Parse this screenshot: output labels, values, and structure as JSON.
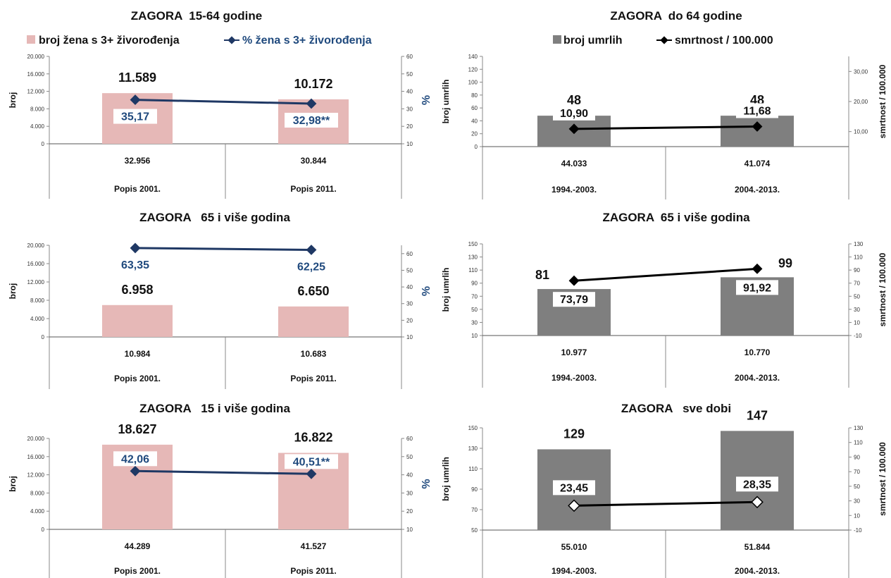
{
  "legends": {
    "left_bar": "broj žena s 3+ živorođenja",
    "left_line": "% žena s 3+ živorođenja",
    "right_bar": "broj umrlih",
    "right_line": "smrtnost / 100.000"
  },
  "colors": {
    "pink_bar": "#e6b8b7",
    "gray_bar": "#7f7f7f",
    "navy_line": "#1f3864",
    "pct_text": "#1f497d",
    "black_line": "#000000"
  },
  "chart_data": [
    {
      "id": "left1",
      "type": "bar+line",
      "title": "ZAGORA  15-64 godine",
      "ylabel": "broj",
      "y2label": "%",
      "ylim": [
        0,
        20000
      ],
      "y_ticks": [
        "0",
        "4.000",
        "8.000",
        "12.000",
        "16.000",
        "20.000"
      ],
      "y2lim": [
        10,
        60
      ],
      "y2_ticks": [
        "10",
        "20",
        "30",
        "40",
        "50",
        "60"
      ],
      "categories": [
        "Popis 2001.",
        "Popis 2011."
      ],
      "cat_values": [
        "32.956",
        "30.844"
      ],
      "bar_values": [
        11589,
        10172
      ],
      "bar_labels": [
        "11.589",
        "10.172"
      ],
      "line_values": [
        35.17,
        32.98
      ],
      "line_labels": [
        "35,17",
        "32,98**"
      ]
    },
    {
      "id": "left2",
      "type": "bar+line",
      "title": "ZAGORA   65 i više godina",
      "ylabel": "broj",
      "y2label": "%",
      "ylim": [
        0,
        20000
      ],
      "y_ticks": [
        "0",
        "4.000",
        "8.000",
        "12.000",
        "16.000",
        "20.000"
      ],
      "y2lim": [
        10,
        65
      ],
      "y2_ticks": [
        "10",
        "20",
        "30",
        "40",
        "50",
        "60"
      ],
      "categories": [
        "Popis 2001.",
        "Popis 2011."
      ],
      "cat_values": [
        "10.984",
        "10.683"
      ],
      "bar_values": [
        6958,
        6650
      ],
      "bar_labels": [
        "6.958",
        "6.650"
      ],
      "line_values": [
        63.35,
        62.25
      ],
      "line_labels": [
        "63,35",
        "62,25"
      ]
    },
    {
      "id": "left3",
      "type": "bar+line",
      "title": "ZAGORA   15 i više godina",
      "ylabel": "broj",
      "y2label": "%",
      "ylim": [
        0,
        20000
      ],
      "y_ticks": [
        "0",
        "4.000",
        "8.000",
        "12.000",
        "16.000",
        "20.000"
      ],
      "y2lim": [
        10,
        60
      ],
      "y2_ticks": [
        "10",
        "20",
        "30",
        "40",
        "50",
        "60"
      ],
      "categories": [
        "Popis 2001.",
        "Popis 2011."
      ],
      "cat_values": [
        "44.289",
        "41.527"
      ],
      "bar_values": [
        18627,
        16822
      ],
      "bar_labels": [
        "18.627",
        "16.822"
      ],
      "line_values": [
        42.06,
        40.51
      ],
      "line_labels": [
        "42,06",
        "40,51**"
      ]
    },
    {
      "id": "right1",
      "type": "bar+line",
      "title": "ZAGORA  do 64 godine",
      "ylabel": "broj umrlih",
      "y2label": "smrtnost / 100.000",
      "ylim": [
        0,
        140
      ],
      "y_ticks": [
        "0",
        "20",
        "40",
        "60",
        "80",
        "100",
        "120",
        "140"
      ],
      "y2lim": [
        5,
        35
      ],
      "y2_ticks": [
        "10,00",
        "20,00",
        "30,00"
      ],
      "categories": [
        "1994.-2003.",
        "2004.-2013."
      ],
      "cat_values": [
        "44.033",
        "41.074"
      ],
      "bar_values": [
        48,
        48
      ],
      "bar_labels": [
        "48",
        "48"
      ],
      "line_values": [
        10.9,
        11.68
      ],
      "line_labels": [
        "10,90",
        "11,68"
      ]
    },
    {
      "id": "right2",
      "type": "bar+line",
      "title": "ZAGORA  65 i više godina",
      "ylabel": "broj umrlih",
      "y2label": "smrtnost / 100.000",
      "ylim": [
        10,
        150
      ],
      "y_ticks": [
        "10",
        "30",
        "50",
        "70",
        "90",
        "110",
        "130",
        "150"
      ],
      "y2lim": [
        -10,
        130
      ],
      "y2_ticks": [
        "-10",
        "10",
        "30",
        "50",
        "70",
        "90",
        "110",
        "130"
      ],
      "categories": [
        "1994.-2003.",
        "2004.-2013."
      ],
      "cat_values": [
        "10.977",
        "10.770"
      ],
      "bar_values": [
        81,
        99
      ],
      "bar_labels": [
        "81",
        "99"
      ],
      "line_values": [
        73.79,
        91.92
      ],
      "line_labels": [
        "73,79",
        "91,92"
      ]
    },
    {
      "id": "right3",
      "type": "bar+line",
      "title": "ZAGORA   sve dobi",
      "ylabel": "broj umrlih",
      "y2label": "smrtnost / 100.000",
      "ylim": [
        50,
        150
      ],
      "y_ticks": [
        "50",
        "70",
        "90",
        "110",
        "130",
        "150"
      ],
      "y2lim": [
        -10,
        130
      ],
      "y2_ticks": [
        "-10",
        "10",
        "30",
        "50",
        "70",
        "90",
        "110",
        "130"
      ],
      "categories": [
        "1994.-2003.",
        "2004.-2013."
      ],
      "cat_values": [
        "55.010",
        "51.844"
      ],
      "bar_values": [
        129,
        147
      ],
      "bar_labels": [
        "129",
        "147"
      ],
      "line_values": [
        23.45,
        28.35
      ],
      "line_labels": [
        "23,45",
        "28,35"
      ]
    }
  ]
}
